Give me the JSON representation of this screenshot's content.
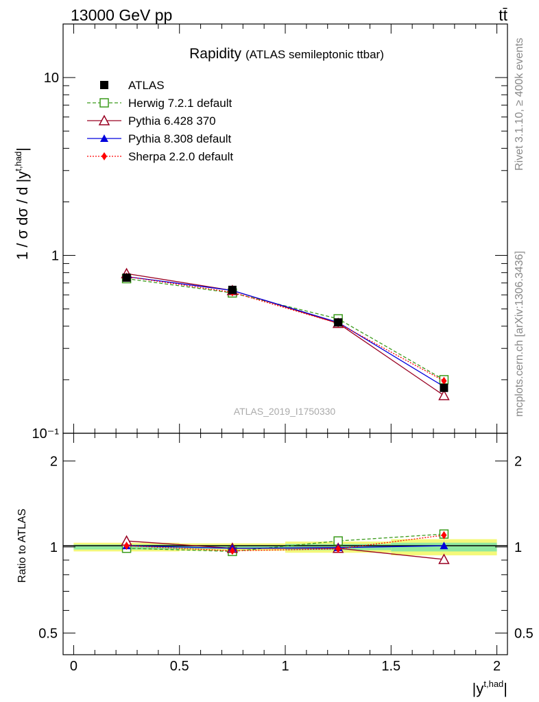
{
  "header": {
    "energy": "13000 GeV pp",
    "process": "tt̄"
  },
  "side_labels": {
    "rivet": "Rivet 3.1.10, ≥ 400k events",
    "mcplots": "mcplots.cern.ch [arXiv:1306.3436]"
  },
  "watermark": "ATLAS_2019_I1750330",
  "colors": {
    "ATLAS": "#000000",
    "Herwig": "#3a9a1a",
    "Pythia6": "#990022",
    "Pythia8": "#0000dd",
    "Sherpa": "#ff0000",
    "band_outer": "#f4f87a",
    "band_inner": "#8fe8a0"
  },
  "chart_data": [
    {
      "type": "line",
      "title": "Rapidity",
      "subtitle": "(ATLAS semileptonic ttbar)",
      "ylabel": "1 / σ dσ / d |y^{t,had}|",
      "yscale": "log",
      "ylim": [
        0.1,
        20
      ],
      "xlim": [
        -0.05,
        2.05
      ],
      "y_ticks": [
        {
          "value": 10,
          "label": "10"
        },
        {
          "value": 1,
          "label": "1"
        },
        {
          "value": 0.1,
          "label": "10⁻¹"
        }
      ],
      "legend_position": "top-left",
      "x": [
        0.25,
        0.75,
        1.25,
        1.75
      ],
      "series": [
        {
          "name": "ATLAS",
          "marker": "square-filled",
          "line": "none",
          "values": [
            0.75,
            0.64,
            0.42,
            0.18
          ]
        },
        {
          "name": "Herwig 7.2.1 default",
          "marker": "square-open",
          "line": "dashed",
          "values": [
            0.74,
            0.615,
            0.44,
            0.2
          ]
        },
        {
          "name": "Pythia 6.428 370",
          "marker": "triangle-open",
          "line": "solid",
          "values": [
            0.79,
            0.635,
            0.415,
            0.163
          ]
        },
        {
          "name": "Pythia 8.308 default",
          "marker": "triangle-filled",
          "line": "solid",
          "values": [
            0.76,
            0.635,
            0.42,
            0.183
          ]
        },
        {
          "name": "Sherpa 2.2.0 default",
          "marker": "diamond-filled",
          "line": "dotted",
          "values": [
            0.76,
            0.62,
            0.415,
            0.197
          ]
        }
      ]
    },
    {
      "type": "line",
      "ylabel": "Ratio to ATLAS",
      "xlabel": "|y^{t,had}|",
      "yscale": "log",
      "ylim": [
        0.42,
        2.5
      ],
      "xlim": [
        -0.05,
        2.05
      ],
      "x_ticks": [
        {
          "value": 0,
          "label": "0"
        },
        {
          "value": 0.5,
          "label": "0.5"
        },
        {
          "value": 1,
          "label": "1"
        },
        {
          "value": 1.5,
          "label": "1.5"
        },
        {
          "value": 2,
          "label": "2"
        }
      ],
      "y_ticks": [
        {
          "value": 2,
          "label": "2"
        },
        {
          "value": 1,
          "label": "1"
        },
        {
          "value": 0.5,
          "label": "0.5"
        }
      ],
      "bands": [
        {
          "x0": 0.0,
          "x1": 0.5,
          "outer": [
            0.965,
            1.035
          ],
          "inner": [
            0.98,
            1.02
          ]
        },
        {
          "x0": 0.5,
          "x1": 1.0,
          "outer": [
            0.97,
            1.03
          ],
          "inner": [
            0.985,
            1.015
          ]
        },
        {
          "x0": 1.0,
          "x1": 1.5,
          "outer": [
            0.955,
            1.045
          ],
          "inner": [
            0.975,
            1.025
          ]
        },
        {
          "x0": 1.5,
          "x1": 2.0,
          "outer": [
            0.935,
            1.065
          ],
          "inner": [
            0.965,
            1.035
          ]
        }
      ],
      "x": [
        0.25,
        0.75,
        1.25,
        1.75
      ],
      "series": [
        {
          "name": "Herwig 7.2.1 default",
          "values": [
            0.99,
            0.965,
            1.05,
            1.11
          ]
        },
        {
          "name": "Pythia 6.428 370",
          "values": [
            1.05,
            0.99,
            0.99,
            0.905
          ]
        },
        {
          "name": "Pythia 8.308 default",
          "values": [
            1.01,
            0.99,
            0.995,
            1.01
          ]
        },
        {
          "name": "Sherpa 2.2.0 default",
          "values": [
            1.01,
            0.97,
            0.985,
            1.1
          ]
        }
      ]
    }
  ]
}
